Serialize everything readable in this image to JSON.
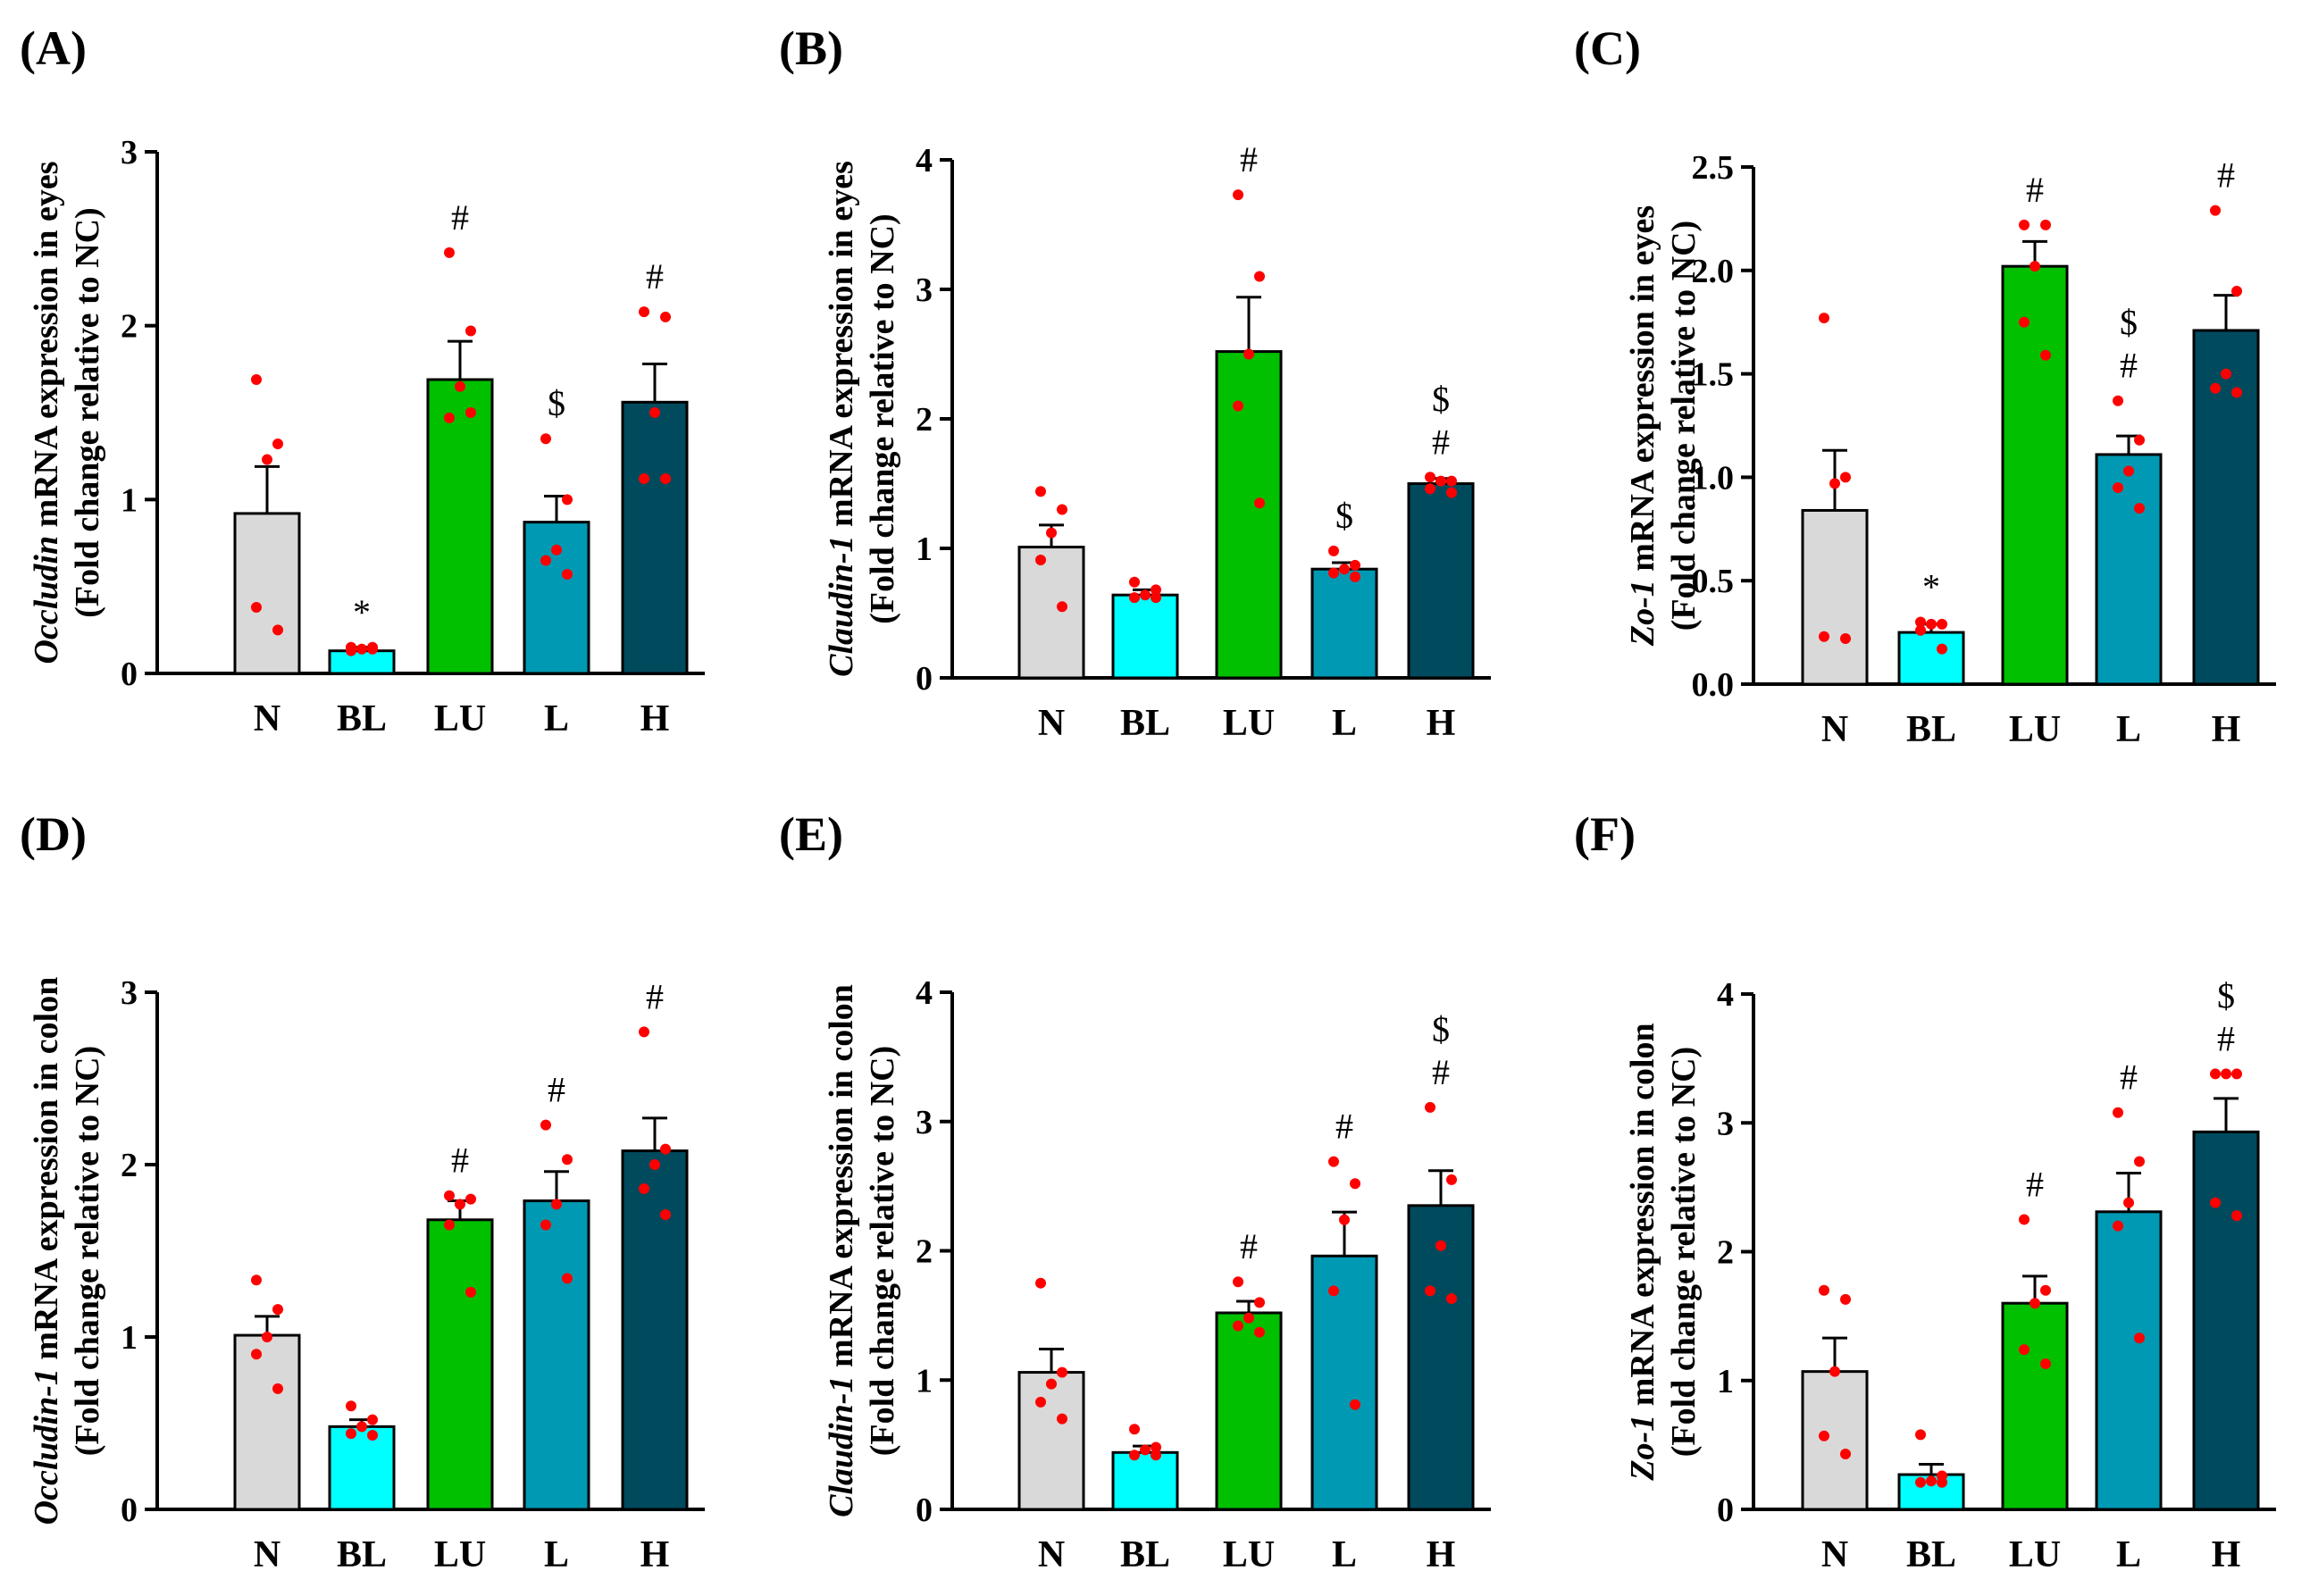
{
  "figure_title": "",
  "chart_data": [
    {
      "type": "bar",
      "panel": "(A)",
      "categories": [
        "N",
        "BL",
        "LU",
        "L",
        "H"
      ],
      "values": [
        0.92,
        0.13,
        1.69,
        0.87,
        1.56
      ],
      "errors": [
        0.27,
        0.02,
        0.22,
        0.15,
        0.22
      ],
      "points": [
        [
          1.69,
          1.32,
          1.23,
          0.38,
          0.25
        ],
        [
          0.15,
          0.14,
          0.14,
          0.13,
          0.15
        ],
        [
          2.42,
          1.97,
          1.65,
          1.47,
          1.5
        ],
        [
          1.35,
          1.0,
          0.71,
          0.65,
          0.57
        ],
        [
          2.08,
          2.05,
          1.5,
          1.12,
          1.12
        ]
      ],
      "significance": [
        [],
        [
          "*"
        ],
        [
          "#"
        ],
        [
          "$"
        ],
        [
          "#"
        ]
      ],
      "ylabel_italic": "Occludin",
      "ylabel_rest": " mRNA expression in eyes",
      "ylabel_line2": "(Fold change relative to NC)",
      "ylim": [
        0,
        3
      ],
      "yticks": [
        "0",
        "1",
        "2",
        "3"
      ],
      "bar_colors": [
        "#d9d9d9",
        "#00ffff",
        "#00c000",
        "#0099b3",
        "#004a5e"
      ]
    },
    {
      "type": "bar",
      "panel": "(B)",
      "categories": [
        "N",
        "BL",
        "LU",
        "L",
        "H"
      ],
      "values": [
        1.01,
        0.64,
        2.52,
        0.84,
        1.5
      ],
      "errors": [
        0.17,
        0.04,
        0.42,
        0.05,
        0.04
      ],
      "points": [
        [
          1.44,
          1.3,
          1.12,
          0.91,
          0.55
        ],
        [
          0.74,
          0.68,
          0.64,
          0.62,
          0.62
        ],
        [
          3.73,
          3.1,
          2.5,
          2.1,
          1.35
        ],
        [
          0.98,
          0.87,
          0.84,
          0.81,
          0.78
        ],
        [
          1.55,
          1.52,
          1.52,
          1.46,
          1.43
        ]
      ],
      "significance": [
        [],
        [],
        [
          "#"
        ],
        [
          "$"
        ],
        [
          "$",
          "#"
        ]
      ],
      "ylabel_italic": "Claudin-1",
      "ylabel_rest": " mRNA expression in eyes",
      "ylabel_line2": "(Fold change relative to NC)",
      "ylim": [
        0,
        4
      ],
      "yticks": [
        "0",
        "1",
        "2",
        "3",
        "4"
      ],
      "bar_colors": [
        "#d9d9d9",
        "#00ffff",
        "#00c000",
        "#0099b3",
        "#004a5e"
      ]
    },
    {
      "type": "bar",
      "panel": "(C)",
      "categories": [
        "N",
        "BL",
        "LU",
        "L",
        "H"
      ],
      "values": [
        0.84,
        0.25,
        2.02,
        1.11,
        1.71
      ],
      "errors": [
        0.29,
        0.04,
        0.12,
        0.09,
        0.17
      ],
      "points": [
        [
          1.77,
          1.0,
          0.97,
          0.23,
          0.22
        ],
        [
          0.3,
          0.29,
          0.29,
          0.26,
          0.17
        ],
        [
          2.22,
          2.22,
          2.02,
          1.75,
          1.59
        ],
        [
          1.37,
          1.18,
          1.03,
          0.95,
          0.85
        ],
        [
          2.29,
          1.9,
          1.5,
          1.43,
          1.41
        ]
      ],
      "significance": [
        [],
        [
          "*"
        ],
        [
          "#"
        ],
        [
          "$",
          "#"
        ],
        [
          "#"
        ]
      ],
      "ylabel_italic": "Zo-1",
      "ylabel_rest": " mRNA expression in eyes",
      "ylabel_line2": "(Fold change relative to NC)",
      "ylim": [
        0,
        2.5
      ],
      "yticks": [
        "0.0",
        "0.5",
        "1.0",
        "1.5",
        "2.0",
        "2.5"
      ],
      "bar_colors": [
        "#d9d9d9",
        "#00ffff",
        "#00c000",
        "#0099b3",
        "#004a5e"
      ]
    },
    {
      "type": "bar",
      "panel": "(D)",
      "categories": [
        "N",
        "BL",
        "LU",
        "L",
        "H"
      ],
      "values": [
        1.01,
        0.48,
        1.68,
        1.79,
        2.08
      ],
      "errors": [
        0.11,
        0.04,
        0.11,
        0.17,
        0.19
      ],
      "points": [
        [
          1.33,
          1.16,
          1.0,
          0.9,
          0.7
        ],
        [
          0.6,
          0.52,
          0.48,
          0.44,
          0.43
        ],
        [
          1.82,
          1.8,
          1.77,
          1.65,
          1.26
        ],
        [
          2.23,
          2.03,
          1.77,
          1.65,
          1.34
        ],
        [
          2.77,
          2.09,
          2.0,
          1.86,
          1.71
        ]
      ],
      "significance": [
        [],
        [],
        [
          "#"
        ],
        [
          "#"
        ],
        [
          "#"
        ]
      ],
      "ylabel_italic": "Occludin-1",
      "ylabel_rest": " mRNA expression in colon",
      "ylabel_line2": "(Fold change relative to NC)",
      "ylim": [
        0,
        3
      ],
      "yticks": [
        "0",
        "1",
        "2",
        "3"
      ],
      "bar_colors": [
        "#d9d9d9",
        "#00ffff",
        "#00c000",
        "#0099b3",
        "#004a5e"
      ]
    },
    {
      "type": "bar",
      "panel": "(E)",
      "categories": [
        "N",
        "BL",
        "LU",
        "L",
        "H"
      ],
      "values": [
        1.06,
        0.44,
        1.52,
        1.96,
        2.35
      ],
      "errors": [
        0.18,
        0.05,
        0.09,
        0.34,
        0.27
      ],
      "points": [
        [
          1.75,
          1.06,
          0.97,
          0.83,
          0.7
        ],
        [
          0.62,
          0.48,
          0.46,
          0.42,
          0.42
        ],
        [
          1.76,
          1.6,
          1.48,
          1.42,
          1.37
        ],
        [
          2.69,
          2.52,
          2.24,
          1.69,
          0.81
        ],
        [
          3.11,
          2.55,
          2.04,
          1.69,
          1.63
        ]
      ],
      "significance": [
        [],
        [],
        [
          "#"
        ],
        [
          "#"
        ],
        [
          "$",
          "#"
        ]
      ],
      "ylabel_italic": "Claudin-1",
      "ylabel_rest": " mRNA expression in colon",
      "ylabel_line2": "(Fold change relative to NC)",
      "ylim": [
        0,
        4
      ],
      "yticks": [
        "0",
        "1",
        "2",
        "3",
        "4"
      ],
      "bar_colors": [
        "#d9d9d9",
        "#00ffff",
        "#00c000",
        "#0099b3",
        "#004a5e"
      ]
    },
    {
      "type": "bar",
      "panel": "(F)",
      "categories": [
        "N",
        "BL",
        "LU",
        "L",
        "H"
      ],
      "values": [
        1.07,
        0.27,
        1.6,
        2.31,
        2.93
      ],
      "errors": [
        0.26,
        0.08,
        0.21,
        0.3,
        0.26
      ],
      "points": [
        [
          1.7,
          1.63,
          1.07,
          0.57,
          0.43
        ],
        [
          0.58,
          0.26,
          0.22,
          0.21,
          0.21
        ],
        [
          2.25,
          1.7,
          1.6,
          1.24,
          1.13
        ],
        [
          3.08,
          2.7,
          2.38,
          2.2,
          1.33
        ],
        [
          3.38,
          3.38,
          3.38,
          2.38,
          2.28
        ]
      ],
      "significance": [
        [],
        [],
        [
          "#"
        ],
        [
          "#"
        ],
        [
          "$",
          "#"
        ]
      ],
      "ylabel_italic": "Zo-1",
      "ylabel_rest": " mRNA expression in colon",
      "ylabel_line2": "(Fold change relative to NC)",
      "ylim": [
        0,
        4
      ],
      "yticks": [
        "0",
        "1",
        "2",
        "3",
        "4"
      ],
      "bar_colors": [
        "#d9d9d9",
        "#00ffff",
        "#00c000",
        "#0099b3",
        "#004a5e"
      ]
    }
  ],
  "point_color": "#ff0000"
}
